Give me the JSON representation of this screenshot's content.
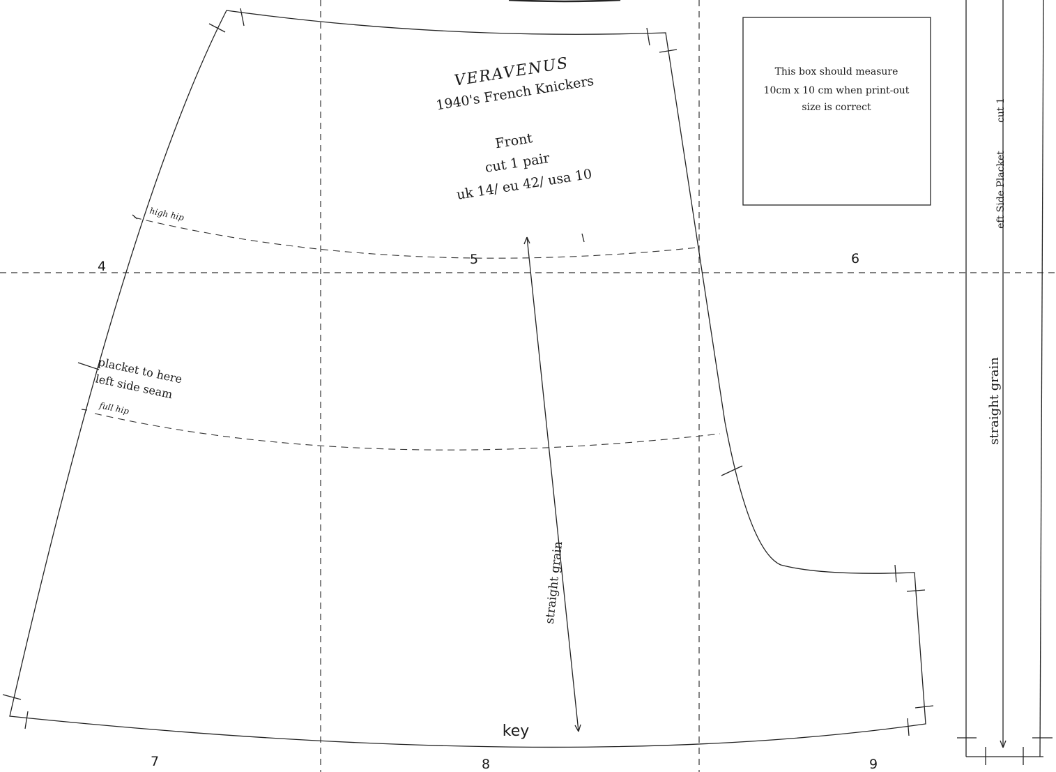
{
  "brand": "VERAVENUS",
  "pattern_title": "1940's French Knickers",
  "piece_name": "Front",
  "cut_instruction": "cut 1 pair",
  "size": "uk 14/ eu 42/ usa 10",
  "test_box_lines": [
    "This box should measure",
    "10cm x 10 cm when print-out",
    "size is correct"
  ],
  "labels": {
    "high_hip": "high hip",
    "full_hip": "full hip",
    "placket_line1": "placket to here",
    "placket_line2": "left side seam",
    "grain_front": "straight grain",
    "grain_placket": "straight grain",
    "placket_title": "eft Side Placket",
    "placket_cut": "cut 1",
    "key": "key"
  },
  "page_numbers": [
    "4",
    "5",
    "6",
    "7",
    "8",
    "9"
  ]
}
